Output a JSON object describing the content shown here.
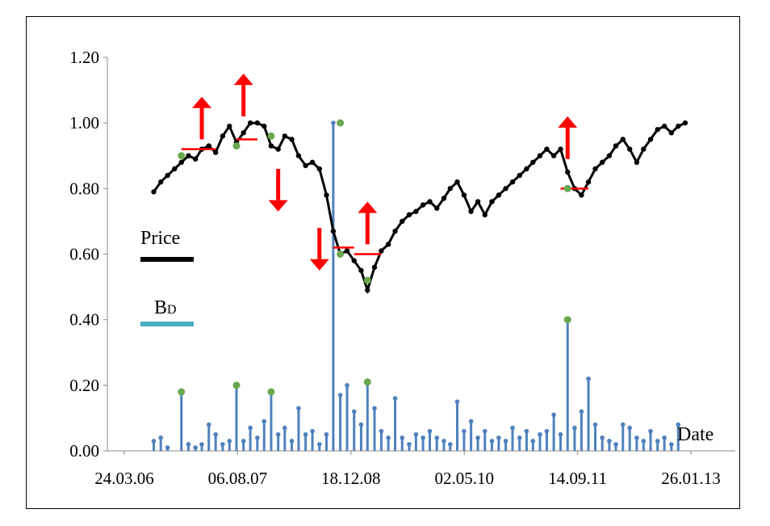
{
  "chart_data": {
    "type": "line",
    "xlabel": "Date",
    "ylabel": "",
    "ylim": [
      0,
      1.2
    ],
    "grid": false,
    "y_ticks": [
      0.0,
      0.2,
      0.4,
      0.6,
      0.8,
      1.0,
      1.2
    ],
    "y_tick_labels": [
      "0.00",
      "0.20",
      "0.40",
      "0.60",
      "0.80",
      "1.00",
      "1.20"
    ],
    "x_ticks": [
      "2006-03-24",
      "2007-08-06",
      "2008-12-18",
      "2010-05-02",
      "2011-09-14",
      "2013-01-26"
    ],
    "x_tick_labels": [
      "24.03.06",
      "06.08.07",
      "18.12.08",
      "02.05.10",
      "14.09.11",
      "26.01.13"
    ],
    "legend_position": "left",
    "series": [
      {
        "name": "Price",
        "color": "#000000",
        "style": "line-with-markers",
        "points": [
          [
            "2006-08-01",
            0.79
          ],
          [
            "2006-09-01",
            0.82
          ],
          [
            "2006-10-01",
            0.84
          ],
          [
            "2006-11-01",
            0.86
          ],
          [
            "2006-12-01",
            0.88
          ],
          [
            "2007-01-01",
            0.9
          ],
          [
            "2007-02-01",
            0.89
          ],
          [
            "2007-03-01",
            0.92
          ],
          [
            "2007-04-01",
            0.93
          ],
          [
            "2007-05-01",
            0.91
          ],
          [
            "2007-06-01",
            0.96
          ],
          [
            "2007-07-01",
            0.99
          ],
          [
            "2007-08-01",
            0.94
          ],
          [
            "2007-09-01",
            0.97
          ],
          [
            "2007-10-01",
            1.0
          ],
          [
            "2007-11-01",
            1.0
          ],
          [
            "2007-12-01",
            0.99
          ],
          [
            "2008-01-01",
            0.93
          ],
          [
            "2008-02-01",
            0.92
          ],
          [
            "2008-03-01",
            0.96
          ],
          [
            "2008-04-01",
            0.95
          ],
          [
            "2008-05-01",
            0.9
          ],
          [
            "2008-06-01",
            0.87
          ],
          [
            "2008-07-01",
            0.88
          ],
          [
            "2008-08-01",
            0.86
          ],
          [
            "2008-09-01",
            0.78
          ],
          [
            "2008-10-01",
            0.67
          ],
          [
            "2008-11-01",
            0.6
          ],
          [
            "2008-12-01",
            0.61
          ],
          [
            "2009-01-01",
            0.58
          ],
          [
            "2009-02-01",
            0.55
          ],
          [
            "2009-03-01",
            0.49
          ],
          [
            "2009-04-01",
            0.56
          ],
          [
            "2009-05-01",
            0.61
          ],
          [
            "2009-06-01",
            0.63
          ],
          [
            "2009-07-01",
            0.67
          ],
          [
            "2009-08-01",
            0.7
          ],
          [
            "2009-09-01",
            0.72
          ],
          [
            "2009-10-01",
            0.73
          ],
          [
            "2009-11-01",
            0.75
          ],
          [
            "2009-12-01",
            0.76
          ],
          [
            "2010-01-01",
            0.74
          ],
          [
            "2010-02-01",
            0.77
          ],
          [
            "2010-03-01",
            0.8
          ],
          [
            "2010-04-01",
            0.82
          ],
          [
            "2010-05-01",
            0.78
          ],
          [
            "2010-06-01",
            0.73
          ],
          [
            "2010-07-01",
            0.76
          ],
          [
            "2010-08-01",
            0.72
          ],
          [
            "2010-09-01",
            0.76
          ],
          [
            "2010-10-01",
            0.78
          ],
          [
            "2010-11-01",
            0.8
          ],
          [
            "2010-12-01",
            0.82
          ],
          [
            "2011-01-01",
            0.84
          ],
          [
            "2011-02-01",
            0.86
          ],
          [
            "2011-03-01",
            0.88
          ],
          [
            "2011-04-01",
            0.9
          ],
          [
            "2011-05-01",
            0.92
          ],
          [
            "2011-06-01",
            0.9
          ],
          [
            "2011-07-01",
            0.92
          ],
          [
            "2011-08-01",
            0.85
          ],
          [
            "2011-09-01",
            0.8
          ],
          [
            "2011-10-01",
            0.78
          ],
          [
            "2011-11-01",
            0.82
          ],
          [
            "2011-12-01",
            0.86
          ],
          [
            "2012-01-01",
            0.88
          ],
          [
            "2012-02-01",
            0.9
          ],
          [
            "2012-03-01",
            0.93
          ],
          [
            "2012-04-01",
            0.95
          ],
          [
            "2012-05-01",
            0.92
          ],
          [
            "2012-06-01",
            0.88
          ],
          [
            "2012-07-01",
            0.92
          ],
          [
            "2012-08-01",
            0.95
          ],
          [
            "2012-09-01",
            0.98
          ],
          [
            "2012-10-01",
            0.99
          ],
          [
            "2012-11-01",
            0.97
          ],
          [
            "2012-12-01",
            0.99
          ],
          [
            "2013-01-01",
            1.0
          ]
        ]
      },
      {
        "name": "BD",
        "legend_color": "#4bacc6",
        "color": "#4f81bd",
        "style": "spikes",
        "points": [
          [
            "2006-08-01",
            0.03
          ],
          [
            "2006-09-01",
            0.04
          ],
          [
            "2006-10-01",
            0.01
          ],
          [
            "2006-12-01",
            0.18
          ],
          [
            "2007-01-01",
            0.02
          ],
          [
            "2007-02-01",
            0.01
          ],
          [
            "2007-03-01",
            0.02
          ],
          [
            "2007-04-01",
            0.08
          ],
          [
            "2007-05-01",
            0.05
          ],
          [
            "2007-06-01",
            0.02
          ],
          [
            "2007-07-01",
            0.03
          ],
          [
            "2007-08-01",
            0.2
          ],
          [
            "2007-09-01",
            0.03
          ],
          [
            "2007-10-01",
            0.07
          ],
          [
            "2007-11-01",
            0.04
          ],
          [
            "2007-12-01",
            0.09
          ],
          [
            "2008-01-01",
            0.18
          ],
          [
            "2008-02-01",
            0.05
          ],
          [
            "2008-03-01",
            0.07
          ],
          [
            "2008-04-01",
            0.03
          ],
          [
            "2008-05-01",
            0.13
          ],
          [
            "2008-06-01",
            0.05
          ],
          [
            "2008-07-01",
            0.06
          ],
          [
            "2008-08-01",
            0.02
          ],
          [
            "2008-09-01",
            0.05
          ],
          [
            "2008-10-01",
            1.0
          ],
          [
            "2008-11-01",
            0.17
          ],
          [
            "2008-12-01",
            0.2
          ],
          [
            "2009-01-01",
            0.12
          ],
          [
            "2009-02-01",
            0.08
          ],
          [
            "2009-03-01",
            0.21
          ],
          [
            "2009-04-01",
            0.13
          ],
          [
            "2009-05-01",
            0.06
          ],
          [
            "2009-06-01",
            0.04
          ],
          [
            "2009-07-01",
            0.16
          ],
          [
            "2009-08-01",
            0.04
          ],
          [
            "2009-09-01",
            0.02
          ],
          [
            "2009-10-01",
            0.05
          ],
          [
            "2009-11-01",
            0.04
          ],
          [
            "2009-12-01",
            0.06
          ],
          [
            "2010-01-01",
            0.04
          ],
          [
            "2010-02-01",
            0.03
          ],
          [
            "2010-03-01",
            0.02
          ],
          [
            "2010-04-01",
            0.15
          ],
          [
            "2010-05-01",
            0.06
          ],
          [
            "2010-06-01",
            0.09
          ],
          [
            "2010-07-01",
            0.04
          ],
          [
            "2010-08-01",
            0.06
          ],
          [
            "2010-09-01",
            0.03
          ],
          [
            "2010-10-01",
            0.04
          ],
          [
            "2010-11-01",
            0.03
          ],
          [
            "2010-12-01",
            0.07
          ],
          [
            "2011-01-01",
            0.04
          ],
          [
            "2011-02-01",
            0.06
          ],
          [
            "2011-03-01",
            0.03
          ],
          [
            "2011-04-01",
            0.05
          ],
          [
            "2011-05-01",
            0.06
          ],
          [
            "2011-06-01",
            0.11
          ],
          [
            "2011-07-01",
            0.05
          ],
          [
            "2011-08-01",
            0.4
          ],
          [
            "2011-09-01",
            0.07
          ],
          [
            "2011-10-01",
            0.12
          ],
          [
            "2011-11-01",
            0.22
          ],
          [
            "2011-12-01",
            0.08
          ],
          [
            "2012-01-01",
            0.04
          ],
          [
            "2012-02-01",
            0.03
          ],
          [
            "2012-03-01",
            0.02
          ],
          [
            "2012-04-01",
            0.08
          ],
          [
            "2012-05-01",
            0.07
          ],
          [
            "2012-06-01",
            0.04
          ],
          [
            "2012-07-01",
            0.03
          ],
          [
            "2012-08-01",
            0.06
          ],
          [
            "2012-09-01",
            0.03
          ],
          [
            "2012-10-01",
            0.04
          ],
          [
            "2012-11-01",
            0.02
          ],
          [
            "2012-12-01",
            0.08
          ]
        ]
      }
    ],
    "highlighted_points": {
      "color": "#6aa84f",
      "points": [
        [
          "2006-12-01",
          0.9
        ],
        [
          "2007-08-01",
          0.93
        ],
        [
          "2008-01-01",
          0.96
        ],
        [
          "2008-11-01",
          1.0
        ],
        [
          "2008-11-01",
          0.6
        ],
        [
          "2009-03-01",
          0.52
        ],
        [
          "2011-08-01",
          0.8
        ],
        [
          "2006-12-01",
          0.18
        ],
        [
          "2007-08-01",
          0.2
        ],
        [
          "2008-01-01",
          0.18
        ],
        [
          "2009-03-01",
          0.21
        ],
        [
          "2011-08-01",
          0.4
        ]
      ]
    },
    "threshold_segments": {
      "color": "#ff0000",
      "segments": [
        [
          "2006-12-01",
          "2007-05-01",
          0.92
        ],
        [
          "2007-08-01",
          "2007-11-01",
          0.95
        ],
        [
          "2008-10-01",
          "2009-01-01",
          0.62
        ],
        [
          "2009-01-01",
          "2009-05-01",
          0.6
        ],
        [
          "2011-07-01",
          "2011-11-01",
          0.8
        ]
      ]
    },
    "arrows": {
      "color": "#ff0000",
      "items": [
        {
          "date": "2007-03-01",
          "direction": "up",
          "from": 0.95,
          "to": 1.08
        },
        {
          "date": "2007-09-01",
          "direction": "up",
          "from": 1.02,
          "to": 1.15
        },
        {
          "date": "2008-02-01",
          "direction": "down",
          "from": 0.86,
          "to": 0.73
        },
        {
          "date": "2008-08-01",
          "direction": "down",
          "from": 0.68,
          "to": 0.55
        },
        {
          "date": "2009-03-01",
          "direction": "up",
          "from": 0.63,
          "to": 0.76
        },
        {
          "date": "2011-08-01",
          "direction": "up",
          "from": 0.89,
          "to": 1.02
        }
      ]
    }
  }
}
